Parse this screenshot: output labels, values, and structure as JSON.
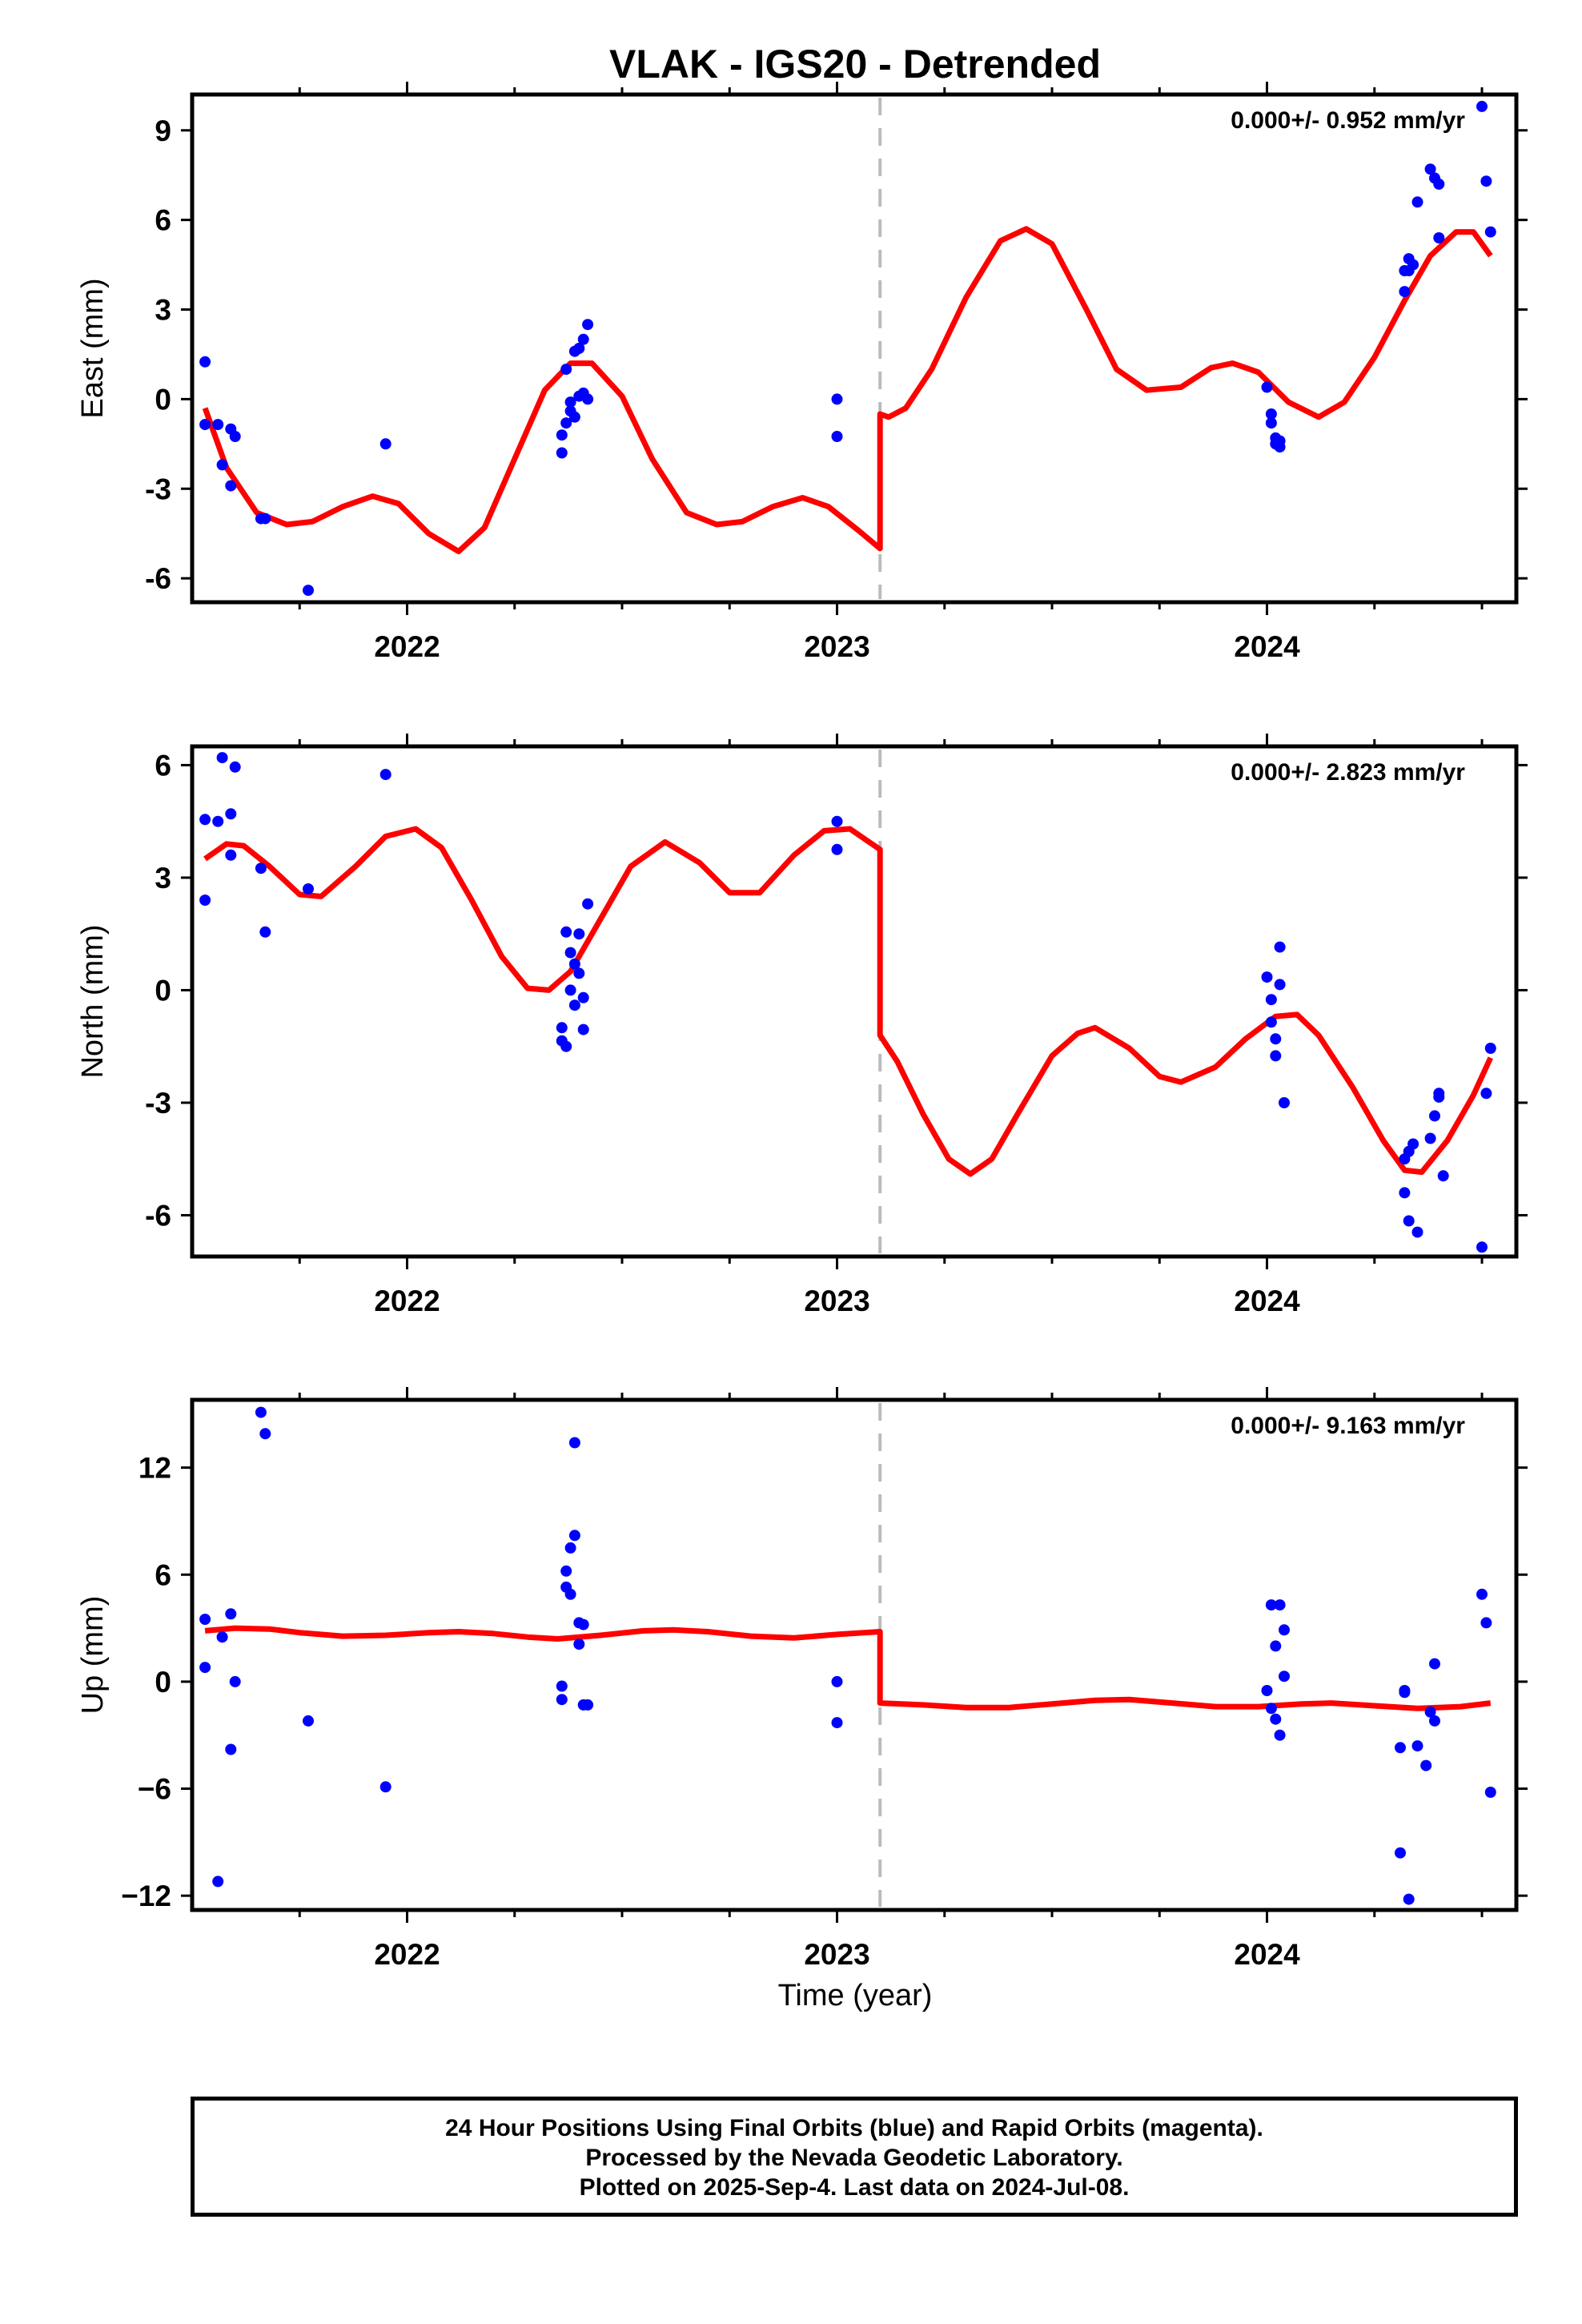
{
  "title": "VLAK - IGS20 - Detrended",
  "chart_data": {
    "type": "scatter",
    "x_start": 2021.5,
    "x_end": 2024.58,
    "x_tick_labels": [
      "2022",
      "2023",
      "2024"
    ],
    "x_ticks": [
      2022,
      2023,
      2024
    ],
    "x_minor_ticks": [
      2021.75,
      2022.25,
      2022.5,
      2022.75,
      2023.25,
      2023.5,
      2023.75,
      2024.25,
      2024.5
    ],
    "xlabel": "Time (year)",
    "break_epoch": 2023.1,
    "colors": {
      "final": "#0000ff",
      "rapid": "#ff00ff",
      "fit": "#ff0000",
      "break": "#bbbbbb"
    },
    "panels": [
      {
        "ylabel": "East (mm)",
        "rate": "0.000+/- 0.952 mm/yr",
        "ylim": [
          -6.8,
          10.2
        ],
        "yticks": [
          -6,
          -3,
          0,
          3,
          6,
          9
        ],
        "yticks_labels": [
          "-6",
          "-3",
          "0",
          "3",
          "6",
          "9"
        ],
        "points": [
          [
            2021.53,
            1.25
          ],
          [
            2021.53,
            -0.85
          ],
          [
            2021.56,
            -0.85
          ],
          [
            2021.57,
            -2.2
          ],
          [
            2021.59,
            -2.9
          ],
          [
            2021.59,
            -1.0
          ],
          [
            2021.6,
            -1.25
          ],
          [
            2021.66,
            -4.0
          ],
          [
            2021.67,
            -4.0
          ],
          [
            2021.77,
            -6.4
          ],
          [
            2021.95,
            -1.5
          ],
          [
            2022.36,
            -1.8
          ],
          [
            2022.36,
            -1.2
          ],
          [
            2022.37,
            1.0
          ],
          [
            2022.37,
            -0.8
          ],
          [
            2022.38,
            -0.4
          ],
          [
            2022.38,
            -0.1
          ],
          [
            2022.39,
            -0.6
          ],
          [
            2022.39,
            1.6
          ],
          [
            2022.4,
            0.1
          ],
          [
            2022.4,
            1.7
          ],
          [
            2022.41,
            0.2
          ],
          [
            2022.41,
            2.0
          ],
          [
            2022.42,
            2.5
          ],
          [
            2022.42,
            0.0
          ],
          [
            2023.0,
            0.0
          ],
          [
            2023.0,
            -1.25
          ],
          [
            2024.0,
            0.4
          ],
          [
            2024.01,
            -0.5
          ],
          [
            2024.01,
            -0.8
          ],
          [
            2024.02,
            -1.3
          ],
          [
            2024.02,
            -1.5
          ],
          [
            2024.03,
            -1.6
          ],
          [
            2024.03,
            -1.4
          ],
          [
            2024.32,
            3.6
          ],
          [
            2024.32,
            4.3
          ],
          [
            2024.33,
            4.7
          ],
          [
            2024.33,
            4.3
          ],
          [
            2024.34,
            4.5
          ],
          [
            2024.35,
            6.6
          ],
          [
            2024.38,
            7.7
          ],
          [
            2024.39,
            7.4
          ],
          [
            2024.4,
            7.2
          ],
          [
            2024.4,
            5.4
          ],
          [
            2024.5,
            9.8
          ],
          [
            2024.51,
            7.3
          ],
          [
            2024.52,
            5.6
          ]
        ],
        "fit": [
          [
            2021.53,
            -0.3
          ],
          [
            2021.58,
            -2.3
          ],
          [
            2021.65,
            -3.8
          ],
          [
            2021.72,
            -4.2
          ],
          [
            2021.78,
            -4.1
          ],
          [
            2021.85,
            -3.6
          ],
          [
            2021.92,
            -3.25
          ],
          [
            2021.98,
            -3.5
          ],
          [
            2022.05,
            -4.5
          ],
          [
            2022.12,
            -5.1
          ],
          [
            2022.18,
            -4.3
          ],
          [
            2022.25,
            -2.0
          ],
          [
            2022.32,
            0.3
          ],
          [
            2022.38,
            1.2
          ],
          [
            2022.43,
            1.2
          ],
          [
            2022.5,
            0.1
          ],
          [
            2022.57,
            -2.0
          ],
          [
            2022.65,
            -3.8
          ],
          [
            2022.72,
            -4.2
          ],
          [
            2022.78,
            -4.1
          ],
          [
            2022.85,
            -3.6
          ],
          [
            2022.92,
            -3.3
          ],
          [
            2022.98,
            -3.6
          ],
          [
            2023.05,
            -4.4
          ],
          [
            2023.1,
            -5.0
          ],
          [
            2023.1,
            -0.5
          ],
          [
            2023.12,
            -0.6
          ],
          [
            2023.16,
            -0.3
          ],
          [
            2023.22,
            1.0
          ],
          [
            2023.3,
            3.4
          ],
          [
            2023.38,
            5.3
          ],
          [
            2023.44,
            5.7
          ],
          [
            2023.5,
            5.2
          ],
          [
            2023.58,
            3.0
          ],
          [
            2023.65,
            1.0
          ],
          [
            2023.72,
            0.3
          ],
          [
            2023.8,
            0.4
          ],
          [
            2023.87,
            1.05
          ],
          [
            2023.92,
            1.2
          ],
          [
            2023.98,
            0.9
          ],
          [
            2024.05,
            -0.1
          ],
          [
            2024.12,
            -0.6
          ],
          [
            2024.18,
            -0.1
          ],
          [
            2024.25,
            1.4
          ],
          [
            2024.32,
            3.3
          ],
          [
            2024.38,
            4.8
          ],
          [
            2024.44,
            5.6
          ],
          [
            2024.48,
            5.6
          ],
          [
            2024.52,
            4.8
          ]
        ]
      },
      {
        "ylabel": "North (mm)",
        "rate": "0.000+/- 2.823 mm/yr",
        "ylim": [
          -7.1,
          6.5
        ],
        "yticks": [
          -6,
          -3,
          0,
          3,
          6
        ],
        "yticks_labels": [
          "-6",
          "-3",
          "0",
          "3",
          "6"
        ],
        "points": [
          [
            2021.53,
            4.55
          ],
          [
            2021.53,
            2.4
          ],
          [
            2021.56,
            4.5
          ],
          [
            2021.57,
            6.2
          ],
          [
            2021.59,
            4.7
          ],
          [
            2021.59,
            3.6
          ],
          [
            2021.6,
            5.95
          ],
          [
            2021.66,
            3.25
          ],
          [
            2021.67,
            1.55
          ],
          [
            2021.77,
            2.7
          ],
          [
            2021.95,
            5.75
          ],
          [
            2022.36,
            -1.0
          ],
          [
            2022.36,
            -1.35
          ],
          [
            2022.37,
            -1.5
          ],
          [
            2022.37,
            1.55
          ],
          [
            2022.38,
            1.0
          ],
          [
            2022.38,
            0.0
          ],
          [
            2022.39,
            -0.4
          ],
          [
            2022.39,
            0.7
          ],
          [
            2022.4,
            1.5
          ],
          [
            2022.4,
            0.45
          ],
          [
            2022.41,
            -1.05
          ],
          [
            2022.41,
            -0.2
          ],
          [
            2022.42,
            2.3
          ],
          [
            2023.0,
            4.5
          ],
          [
            2023.0,
            3.75
          ],
          [
            2024.0,
            0.35
          ],
          [
            2024.01,
            -0.25
          ],
          [
            2024.01,
            -0.85
          ],
          [
            2024.02,
            -1.3
          ],
          [
            2024.02,
            -1.75
          ],
          [
            2024.03,
            1.15
          ],
          [
            2024.03,
            0.15
          ],
          [
            2024.04,
            -3.0
          ],
          [
            2024.32,
            -4.5
          ],
          [
            2024.32,
            -5.4
          ],
          [
            2024.33,
            -4.3
          ],
          [
            2024.33,
            -6.15
          ],
          [
            2024.34,
            -4.1
          ],
          [
            2024.35,
            -6.45
          ],
          [
            2024.38,
            -3.95
          ],
          [
            2024.39,
            -3.35
          ],
          [
            2024.4,
            -2.85
          ],
          [
            2024.4,
            -2.75
          ],
          [
            2024.41,
            -4.95
          ],
          [
            2024.5,
            -6.85
          ],
          [
            2024.51,
            -2.75
          ],
          [
            2024.52,
            -1.55
          ]
        ],
        "fit": [
          [
            2021.53,
            3.5
          ],
          [
            2021.58,
            3.9
          ],
          [
            2021.62,
            3.85
          ],
          [
            2021.68,
            3.3
          ],
          [
            2021.75,
            2.55
          ],
          [
            2021.8,
            2.5
          ],
          [
            2021.88,
            3.3
          ],
          [
            2021.95,
            4.1
          ],
          [
            2022.02,
            4.3
          ],
          [
            2022.08,
            3.8
          ],
          [
            2022.15,
            2.4
          ],
          [
            2022.22,
            0.9
          ],
          [
            2022.28,
            0.05
          ],
          [
            2022.33,
            0.0
          ],
          [
            2022.38,
            0.5
          ],
          [
            2022.45,
            1.9
          ],
          [
            2022.52,
            3.3
          ],
          [
            2022.6,
            3.95
          ],
          [
            2022.68,
            3.4
          ],
          [
            2022.75,
            2.6
          ],
          [
            2022.82,
            2.6
          ],
          [
            2022.9,
            3.6
          ],
          [
            2022.97,
            4.25
          ],
          [
            2023.03,
            4.3
          ],
          [
            2023.1,
            3.75
          ],
          [
            2023.1,
            -1.2
          ],
          [
            2023.14,
            -1.9
          ],
          [
            2023.2,
            -3.3
          ],
          [
            2023.26,
            -4.5
          ],
          [
            2023.31,
            -4.9
          ],
          [
            2023.36,
            -4.5
          ],
          [
            2023.42,
            -3.3
          ],
          [
            2023.5,
            -1.75
          ],
          [
            2023.56,
            -1.15
          ],
          [
            2023.6,
            -1.0
          ],
          [
            2023.68,
            -1.55
          ],
          [
            2023.75,
            -2.3
          ],
          [
            2023.8,
            -2.45
          ],
          [
            2023.88,
            -2.05
          ],
          [
            2023.95,
            -1.3
          ],
          [
            2024.02,
            -0.7
          ],
          [
            2024.07,
            -0.65
          ],
          [
            2024.12,
            -1.2
          ],
          [
            2024.2,
            -2.6
          ],
          [
            2024.27,
            -4.0
          ],
          [
            2024.32,
            -4.8
          ],
          [
            2024.36,
            -4.85
          ],
          [
            2024.42,
            -4.0
          ],
          [
            2024.48,
            -2.8
          ],
          [
            2024.52,
            -1.8
          ]
        ]
      },
      {
        "ylabel": "Up (mm)",
        "rate": "0.000+/- 9.163 mm/yr",
        "ylim": [
          -12.8,
          15.8
        ],
        "yticks": [
          -12,
          -6,
          0,
          6,
          12
        ],
        "yticks_labels": [
          "−12",
          "−6",
          "0",
          "6",
          "12"
        ],
        "points": [
          [
            2021.53,
            3.5
          ],
          [
            2021.53,
            0.8
          ],
          [
            2021.56,
            -11.2
          ],
          [
            2021.57,
            2.5
          ],
          [
            2021.59,
            3.8
          ],
          [
            2021.59,
            -3.8
          ],
          [
            2021.6,
            0.0
          ],
          [
            2021.66,
            15.1
          ],
          [
            2021.67,
            13.9
          ],
          [
            2021.77,
            -2.2
          ],
          [
            2021.95,
            -5.9
          ],
          [
            2022.36,
            -0.25
          ],
          [
            2022.36,
            -1.0
          ],
          [
            2022.37,
            5.3
          ],
          [
            2022.37,
            6.2
          ],
          [
            2022.38,
            4.9
          ],
          [
            2022.38,
            7.5
          ],
          [
            2022.39,
            8.2
          ],
          [
            2022.39,
            13.4
          ],
          [
            2022.4,
            3.3
          ],
          [
            2022.4,
            2.1
          ],
          [
            2022.41,
            -1.3
          ],
          [
            2022.41,
            3.2
          ],
          [
            2022.42,
            -1.3
          ],
          [
            2023.0,
            0.0
          ],
          [
            2023.0,
            -2.3
          ],
          [
            2024.0,
            -0.5
          ],
          [
            2024.01,
            -1.5
          ],
          [
            2024.01,
            4.3
          ],
          [
            2024.02,
            -2.1
          ],
          [
            2024.02,
            2.0
          ],
          [
            2024.03,
            4.3
          ],
          [
            2024.03,
            -3.0
          ],
          [
            2024.04,
            0.3
          ],
          [
            2024.04,
            2.9
          ],
          [
            2024.31,
            -3.7
          ],
          [
            2024.31,
            -9.6
          ],
          [
            2024.32,
            -0.6
          ],
          [
            2024.32,
            -0.5
          ],
          [
            2024.33,
            -12.2
          ],
          [
            2024.35,
            -3.6
          ],
          [
            2024.37,
            -4.7
          ],
          [
            2024.38,
            -1.7
          ],
          [
            2024.39,
            -2.2
          ],
          [
            2024.39,
            1.0
          ],
          [
            2024.5,
            4.9
          ],
          [
            2024.51,
            3.3
          ],
          [
            2024.52,
            -6.2
          ]
        ],
        "fit": [
          [
            2021.53,
            2.85
          ],
          [
            2021.6,
            3.0
          ],
          [
            2021.68,
            2.95
          ],
          [
            2021.75,
            2.75
          ],
          [
            2021.85,
            2.55
          ],
          [
            2021.95,
            2.6
          ],
          [
            2022.05,
            2.75
          ],
          [
            2022.12,
            2.8
          ],
          [
            2022.2,
            2.7
          ],
          [
            2022.28,
            2.5
          ],
          [
            2022.35,
            2.4
          ],
          [
            2022.45,
            2.6
          ],
          [
            2022.55,
            2.85
          ],
          [
            2022.62,
            2.9
          ],
          [
            2022.7,
            2.8
          ],
          [
            2022.8,
            2.55
          ],
          [
            2022.9,
            2.45
          ],
          [
            2023.0,
            2.65
          ],
          [
            2023.1,
            2.8
          ],
          [
            2023.1,
            -1.2
          ],
          [
            2023.2,
            -1.3
          ],
          [
            2023.3,
            -1.45
          ],
          [
            2023.4,
            -1.45
          ],
          [
            2023.5,
            -1.25
          ],
          [
            2023.6,
            -1.05
          ],
          [
            2023.68,
            -1.0
          ],
          [
            2023.78,
            -1.2
          ],
          [
            2023.88,
            -1.4
          ],
          [
            2023.98,
            -1.4
          ],
          [
            2024.08,
            -1.25
          ],
          [
            2024.15,
            -1.2
          ],
          [
            2024.25,
            -1.35
          ],
          [
            2024.35,
            -1.5
          ],
          [
            2024.45,
            -1.4
          ],
          [
            2024.52,
            -1.2
          ]
        ]
      }
    ]
  },
  "footer": {
    "line1": "24 Hour Positions Using Final Orbits (blue) and Rapid Orbits (magenta).",
    "line2": "Processed by the Nevada Geodetic Laboratory.",
    "line3": "Plotted on 2025-Sep-4. Last data on 2024-Jul-08."
  }
}
